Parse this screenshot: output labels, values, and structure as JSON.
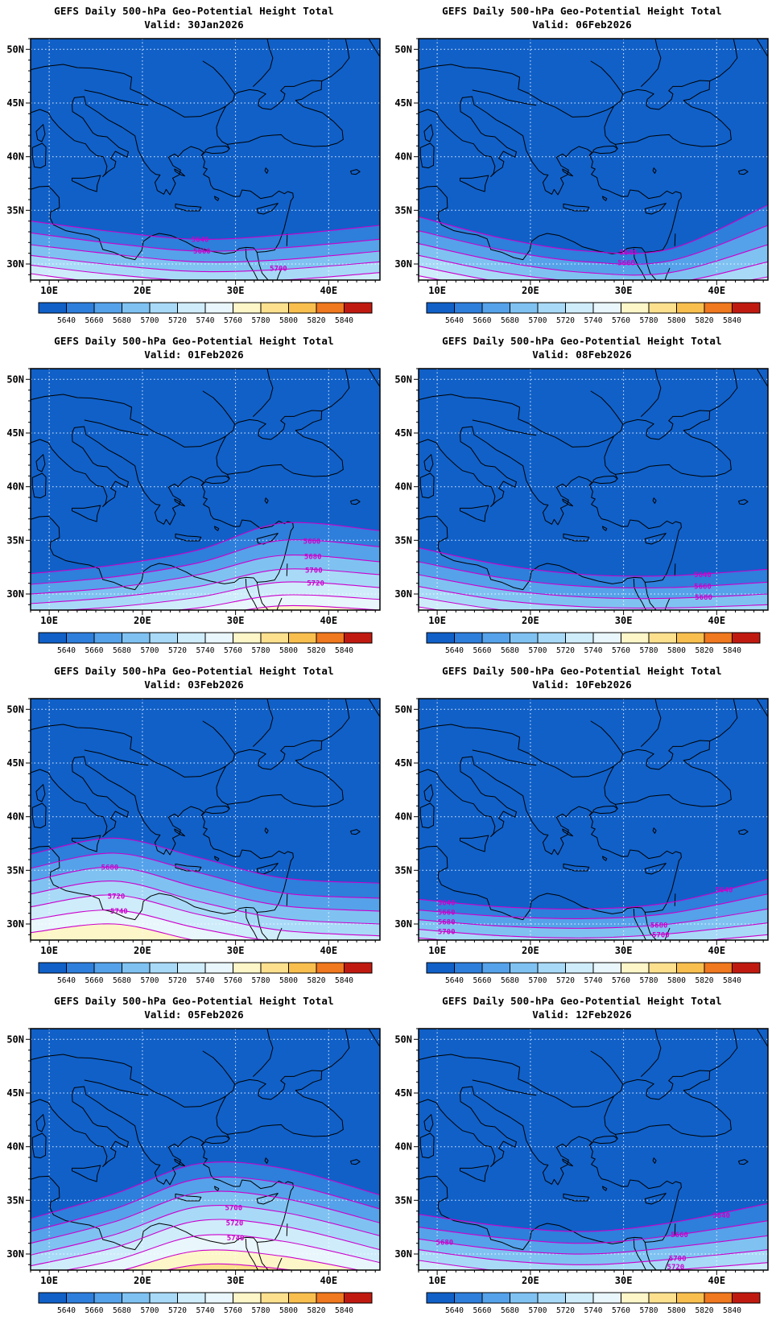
{
  "figure_title": "GEFS Daily 500-hPa Geo-Potential Height Total",
  "axes": {
    "lon_ticks": [
      "10E",
      "20E",
      "30E",
      "40E"
    ],
    "lon_tick_values": [
      10,
      20,
      30,
      40
    ],
    "lat_ticks": [
      "30N",
      "35N",
      "40N",
      "45N",
      "50N"
    ],
    "lat_tick_values": [
      30,
      35,
      40,
      45,
      50
    ],
    "lon_range": [
      8,
      45.5
    ],
    "lat_range": [
      28.5,
      51
    ],
    "grid": "dotted-white"
  },
  "colorbar": {
    "tick_labels": [
      "5640",
      "5660",
      "5680",
      "5700",
      "5720",
      "5740",
      "5760",
      "5780",
      "5800",
      "5820",
      "5840"
    ],
    "colors": [
      "#1060c8",
      "#2e7edc",
      "#55a2ea",
      "#7fc2f2",
      "#a8daf8",
      "#cfecfb",
      "#e9f6fb",
      "#fdf6c8",
      "#fce08e",
      "#f9bf4e",
      "#f0781e",
      "#c01a10"
    ]
  },
  "contour_color": "#cc00cc",
  "chart_data": [
    {
      "type": "heatmap",
      "subtype": "filled-contour-map",
      "title": "GEFS Daily 500-hPa Geo-Potential Height Total",
      "subtitle": "Valid: 30Jan2026",
      "lon_range": [
        8,
        45.5
      ],
      "lat_range": [
        28.5,
        51
      ],
      "contour_interval": 20,
      "lons": [
        8,
        17,
        26,
        35,
        45.5
      ],
      "contours": [
        {
          "level": 5640,
          "lats": [
            34.0,
            33.0,
            32.3,
            32.7,
            33.6
          ]
        },
        {
          "level": 5660,
          "lats": [
            32.9,
            31.9,
            31.2,
            31.5,
            32.3
          ]
        },
        {
          "level": 5680,
          "lats": [
            31.8,
            30.9,
            30.2,
            30.4,
            31.2
          ]
        },
        {
          "level": 5700,
          "lats": [
            30.8,
            29.9,
            29.3,
            29.5,
            30.2
          ]
        },
        {
          "level": 5720,
          "lats": [
            29.9,
            29.0,
            28.4,
            28.5,
            29.2
          ]
        },
        {
          "level": 5740,
          "lats": [
            29.1,
            28.1,
            27.6,
            27.6,
            28.3
          ]
        }
      ],
      "labels": [
        {
          "text": "5640",
          "lon": 26.2,
          "lat": 32.3
        },
        {
          "text": "5660",
          "lon": 26.4,
          "lat": 31.2
        },
        {
          "text": "5700",
          "lon": 34.6,
          "lat": 29.6
        }
      ]
    },
    {
      "type": "heatmap",
      "subtype": "filled-contour-map",
      "title": "GEFS Daily 500-hPa Geo-Potential Height Total",
      "subtitle": "Valid: 06Feb2026",
      "lon_range": [
        8,
        45.5
      ],
      "lat_range": [
        28.5,
        51
      ],
      "contour_interval": 20,
      "lons": [
        8,
        17,
        26,
        35,
        45.5
      ],
      "contours": [
        {
          "level": 5640,
          "lats": [
            34.4,
            32.4,
            31.2,
            31.4,
            35.5
          ]
        },
        {
          "level": 5660,
          "lats": [
            33.1,
            31.3,
            30.2,
            30.3,
            33.6
          ]
        },
        {
          "level": 5680,
          "lats": [
            31.9,
            30.2,
            29.2,
            29.2,
            31.8
          ]
        },
        {
          "level": 5700,
          "lats": [
            30.8,
            29.2,
            28.3,
            28.2,
            30.2
          ]
        },
        {
          "level": 5720,
          "lats": [
            29.8,
            28.3,
            27.5,
            27.3,
            28.8
          ]
        },
        {
          "level": 5740,
          "lats": [
            28.9,
            27.5,
            26.8,
            26.5,
            27.6
          ]
        }
      ],
      "labels": [
        {
          "text": "5640",
          "lon": 30.5,
          "lat": 31.1
        },
        {
          "text": "5660",
          "lon": 30.3,
          "lat": 30.1
        }
      ]
    },
    {
      "type": "heatmap",
      "subtype": "filled-contour-map",
      "title": "GEFS Daily 500-hPa Geo-Potential Height Total",
      "subtitle": "Valid: 01Feb2026",
      "lon_range": [
        8,
        45.5
      ],
      "lat_range": [
        28.5,
        51
      ],
      "contour_interval": 20,
      "lons": [
        8,
        17,
        26,
        35,
        45.5
      ],
      "contours": [
        {
          "level": 5640,
          "lats": [
            31.9,
            32.7,
            34.1,
            36.6,
            35.9
          ]
        },
        {
          "level": 5660,
          "lats": [
            30.9,
            31.6,
            32.9,
            35.0,
            34.4
          ]
        },
        {
          "level": 5680,
          "lats": [
            30.0,
            30.6,
            31.8,
            33.6,
            33.0
          ]
        },
        {
          "level": 5700,
          "lats": [
            29.1,
            29.7,
            30.7,
            32.3,
            31.8
          ]
        },
        {
          "level": 5720,
          "lats": [
            28.3,
            28.8,
            29.7,
            31.1,
            30.6
          ]
        },
        {
          "level": 5740,
          "lats": [
            27.5,
            28.0,
            28.7,
            29.9,
            29.5
          ]
        },
        {
          "level": 5760,
          "lats": [
            26.8,
            27.2,
            27.8,
            28.9,
            28.5
          ]
        }
      ],
      "labels": [
        {
          "text": "5660",
          "lon": 38.2,
          "lat": 34.9
        },
        {
          "text": "5680",
          "lon": 38.3,
          "lat": 33.5
        },
        {
          "text": "5700",
          "lon": 38.4,
          "lat": 32.2
        },
        {
          "text": "5720",
          "lon": 38.6,
          "lat": 31.0
        }
      ]
    },
    {
      "type": "heatmap",
      "subtype": "filled-contour-map",
      "title": "GEFS Daily 500-hPa Geo-Potential Height Total",
      "subtitle": "Valid: 08Feb2026",
      "lon_range": [
        8,
        45.5
      ],
      "lat_range": [
        28.5,
        51
      ],
      "contour_interval": 20,
      "lons": [
        8,
        17,
        26,
        35,
        45.5
      ],
      "contours": [
        {
          "level": 5640,
          "lats": [
            34.3,
            32.7,
            31.8,
            31.7,
            32.3
          ]
        },
        {
          "level": 5660,
          "lats": [
            33.0,
            31.5,
            30.7,
            30.6,
            31.1
          ]
        },
        {
          "level": 5680,
          "lats": [
            31.8,
            30.4,
            29.7,
            29.6,
            30.0
          ]
        },
        {
          "level": 5700,
          "lats": [
            30.7,
            29.4,
            28.8,
            28.7,
            29.0
          ]
        },
        {
          "level": 5720,
          "lats": [
            29.7,
            28.5,
            27.9,
            27.8,
            28.1
          ]
        },
        {
          "level": 5740,
          "lats": [
            28.8,
            27.6,
            27.0,
            26.9,
            27.2
          ]
        }
      ],
      "labels": [
        {
          "text": "5640",
          "lon": 38.5,
          "lat": 31.8
        },
        {
          "text": "5660",
          "lon": 38.5,
          "lat": 30.7
        },
        {
          "text": "5680",
          "lon": 38.6,
          "lat": 29.7
        }
      ]
    },
    {
      "type": "heatmap",
      "subtype": "filled-contour-map",
      "title": "GEFS Daily 500-hPa Geo-Potential Height Total",
      "subtitle": "Valid: 03Feb2026",
      "lon_range": [
        8,
        45.5
      ],
      "lat_range": [
        28.5,
        51
      ],
      "contour_interval": 20,
      "lons": [
        8,
        17,
        26,
        35,
        45.5
      ],
      "contours": [
        {
          "level": 5640,
          "lats": [
            36.5,
            38.0,
            36.2,
            34.3,
            33.8
          ]
        },
        {
          "level": 5660,
          "lats": [
            35.2,
            36.6,
            34.8,
            32.9,
            32.4
          ]
        },
        {
          "level": 5680,
          "lats": [
            34.0,
            35.3,
            33.4,
            31.7,
            31.2
          ]
        },
        {
          "level": 5700,
          "lats": [
            32.8,
            34.0,
            32.1,
            30.5,
            30.0
          ]
        },
        {
          "level": 5720,
          "lats": [
            31.6,
            32.7,
            30.9,
            29.4,
            28.9
          ]
        },
        {
          "level": 5740,
          "lats": [
            30.4,
            31.3,
            29.6,
            28.3,
            27.9
          ]
        },
        {
          "level": 5760,
          "lats": [
            29.2,
            30.0,
            28.4,
            27.2,
            26.9
          ]
        }
      ],
      "labels": [
        {
          "text": "5680",
          "lon": 16.5,
          "lat": 35.3
        },
        {
          "text": "5720",
          "lon": 17.2,
          "lat": 32.6
        },
        {
          "text": "5740",
          "lon": 17.5,
          "lat": 31.2
        }
      ]
    },
    {
      "type": "heatmap",
      "subtype": "filled-contour-map",
      "title": "GEFS Daily 500-hPa Geo-Potential Height Total",
      "subtitle": "Valid: 10Feb2026",
      "lon_range": [
        8,
        45.5
      ],
      "lat_range": [
        28.5,
        51
      ],
      "contour_interval": 20,
      "lons": [
        8,
        17,
        26,
        35,
        45.5
      ],
      "contours": [
        {
          "level": 5640,
          "lats": [
            32.3,
            31.6,
            31.4,
            32.0,
            34.2
          ]
        },
        {
          "level": 5660,
          "lats": [
            31.3,
            30.7,
            30.5,
            31.0,
            32.8
          ]
        },
        {
          "level": 5680,
          "lats": [
            30.4,
            29.8,
            29.6,
            30.0,
            31.4
          ]
        },
        {
          "level": 5700,
          "lats": [
            29.5,
            28.9,
            28.7,
            29.1,
            30.1
          ]
        },
        {
          "level": 5720,
          "lats": [
            28.7,
            28.1,
            27.9,
            28.2,
            29.0
          ]
        }
      ],
      "labels": [
        {
          "text": "5640",
          "lon": 11.0,
          "lat": 32.0
        },
        {
          "text": "5660",
          "lon": 11.0,
          "lat": 31.1
        },
        {
          "text": "5680",
          "lon": 11.0,
          "lat": 30.2
        },
        {
          "text": "5700",
          "lon": 11.0,
          "lat": 29.3
        },
        {
          "text": "5680",
          "lon": 33.8,
          "lat": 29.9
        },
        {
          "text": "5700",
          "lon": 34.0,
          "lat": 29.0
        },
        {
          "text": "5640",
          "lon": 40.8,
          "lat": 33.2
        }
      ]
    },
    {
      "type": "heatmap",
      "subtype": "filled-contour-map",
      "title": "GEFS Daily 500-hPa Geo-Potential Height Total",
      "subtitle": "Valid: 05Feb2026",
      "lon_range": [
        8,
        45.5
      ],
      "lat_range": [
        28.5,
        51
      ],
      "contour_interval": 20,
      "lons": [
        8,
        17,
        26,
        35,
        45.5
      ],
      "contours": [
        {
          "level": 5640,
          "lats": [
            33.3,
            35.6,
            38.4,
            38.0,
            35.5
          ]
        },
        {
          "level": 5660,
          "lats": [
            32.1,
            34.2,
            37.0,
            36.6,
            34.2
          ]
        },
        {
          "level": 5680,
          "lats": [
            31.0,
            33.0,
            35.7,
            35.2,
            32.9
          ]
        },
        {
          "level": 5700,
          "lats": [
            29.9,
            31.8,
            34.4,
            33.9,
            31.7
          ]
        },
        {
          "level": 5720,
          "lats": [
            28.9,
            30.6,
            33.1,
            32.6,
            30.4
          ]
        },
        {
          "level": 5740,
          "lats": [
            27.9,
            29.4,
            31.7,
            31.2,
            29.2
          ]
        },
        {
          "level": 5760,
          "lats": [
            27.0,
            28.3,
            30.3,
            29.8,
            28.1
          ]
        },
        {
          "level": 5780,
          "lats": [
            26.2,
            27.3,
            29.0,
            28.6,
            27.1
          ]
        }
      ],
      "labels": [
        {
          "text": "5700",
          "lon": 29.8,
          "lat": 34.3
        },
        {
          "text": "5720",
          "lon": 29.9,
          "lat": 32.9
        },
        {
          "text": "5740",
          "lon": 30.0,
          "lat": 31.5
        }
      ]
    },
    {
      "type": "heatmap",
      "subtype": "filled-contour-map",
      "title": "GEFS Daily 500-hPa Geo-Potential Height Total",
      "subtitle": "Valid: 12Feb2026",
      "lon_range": [
        8,
        45.5
      ],
      "lat_range": [
        28.5,
        51
      ],
      "contour_interval": 20,
      "lons": [
        8,
        17,
        26,
        35,
        45.5
      ],
      "contours": [
        {
          "level": 5640,
          "lats": [
            33.7,
            32.6,
            32.1,
            32.9,
            34.7
          ]
        },
        {
          "level": 5660,
          "lats": [
            32.5,
            31.5,
            31.0,
            31.7,
            33.1
          ]
        },
        {
          "level": 5680,
          "lats": [
            31.4,
            30.4,
            30.0,
            30.6,
            31.7
          ]
        },
        {
          "level": 5700,
          "lats": [
            30.4,
            29.4,
            29.0,
            29.5,
            30.4
          ]
        },
        {
          "level": 5720,
          "lats": [
            29.4,
            28.4,
            28.1,
            28.5,
            29.2
          ]
        },
        {
          "level": 5740,
          "lats": [
            28.5,
            27.5,
            27.2,
            27.5,
            28.1
          ]
        }
      ],
      "labels": [
        {
          "text": "5680",
          "lon": 10.8,
          "lat": 31.1
        },
        {
          "text": "5660",
          "lon": 36.0,
          "lat": 31.8
        },
        {
          "text": "5700",
          "lon": 35.8,
          "lat": 29.6
        },
        {
          "text": "5720",
          "lon": 35.6,
          "lat": 28.8
        },
        {
          "text": "5640",
          "lon": 40.5,
          "lat": 33.6
        }
      ]
    }
  ]
}
